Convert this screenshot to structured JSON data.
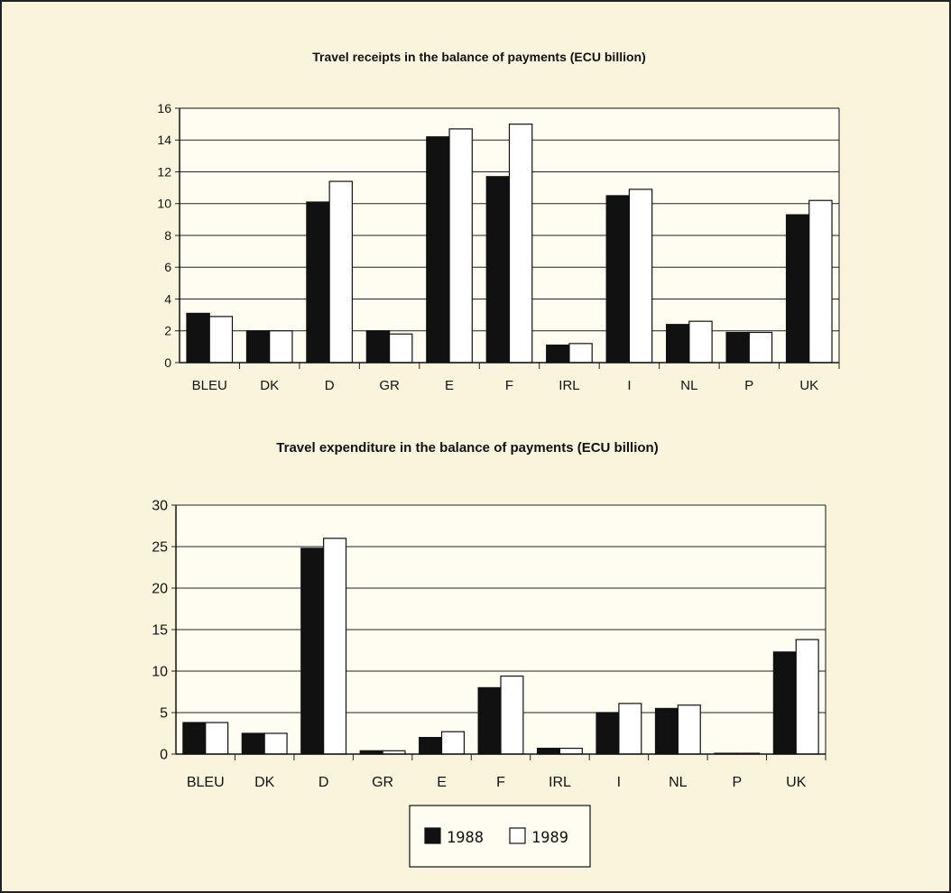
{
  "legend": {
    "entries": [
      "1988",
      "1989"
    ]
  },
  "colors": {
    "series_1988": "#111111",
    "series_1989": "#ffffff",
    "plot_background": "#fffdf2",
    "page_background": "#fbf4dd"
  },
  "chart_data": [
    {
      "type": "bar",
      "title": "Travel receipts in the balance of payments  (ECU billion)",
      "xlabel": "",
      "ylabel": "",
      "ylim": [
        0,
        16
      ],
      "yticks": [
        0,
        2,
        4,
        6,
        8,
        10,
        12,
        14,
        16
      ],
      "grid": true,
      "legend": "bottom-center",
      "categories": [
        "BLEU",
        "DK",
        "D",
        "GR",
        "E",
        "F",
        "IRL",
        "I",
        "NL",
        "P",
        "UK"
      ],
      "series": [
        {
          "name": "1988",
          "values": [
            3.1,
            2.0,
            10.1,
            2.0,
            14.2,
            11.7,
            1.1,
            10.5,
            2.4,
            1.9,
            9.3
          ]
        },
        {
          "name": "1989",
          "values": [
            2.9,
            2.0,
            11.4,
            1.8,
            14.7,
            15.0,
            1.2,
            10.9,
            2.6,
            1.9,
            10.2
          ]
        }
      ]
    },
    {
      "type": "bar",
      "title": "Travel expenditure in the balance of payments  (ECU billion)",
      "xlabel": "",
      "ylabel": "",
      "ylim": [
        0,
        30
      ],
      "yticks": [
        0,
        5,
        10,
        15,
        20,
        25,
        30
      ],
      "grid": true,
      "legend": "bottom-center",
      "categories": [
        "BLEU",
        "DK",
        "D",
        "GR",
        "E",
        "F",
        "IRL",
        "I",
        "NL",
        "P",
        "UK"
      ],
      "series": [
        {
          "name": "1988",
          "values": [
            3.8,
            2.5,
            24.8,
            0.4,
            2.0,
            8.0,
            0.7,
            5.0,
            5.5,
            0.1,
            12.3
          ]
        },
        {
          "name": "1989",
          "values": [
            3.8,
            2.5,
            26.0,
            0.4,
            2.7,
            9.4,
            0.7,
            6.1,
            5.9,
            0.1,
            13.8
          ]
        }
      ]
    }
  ]
}
